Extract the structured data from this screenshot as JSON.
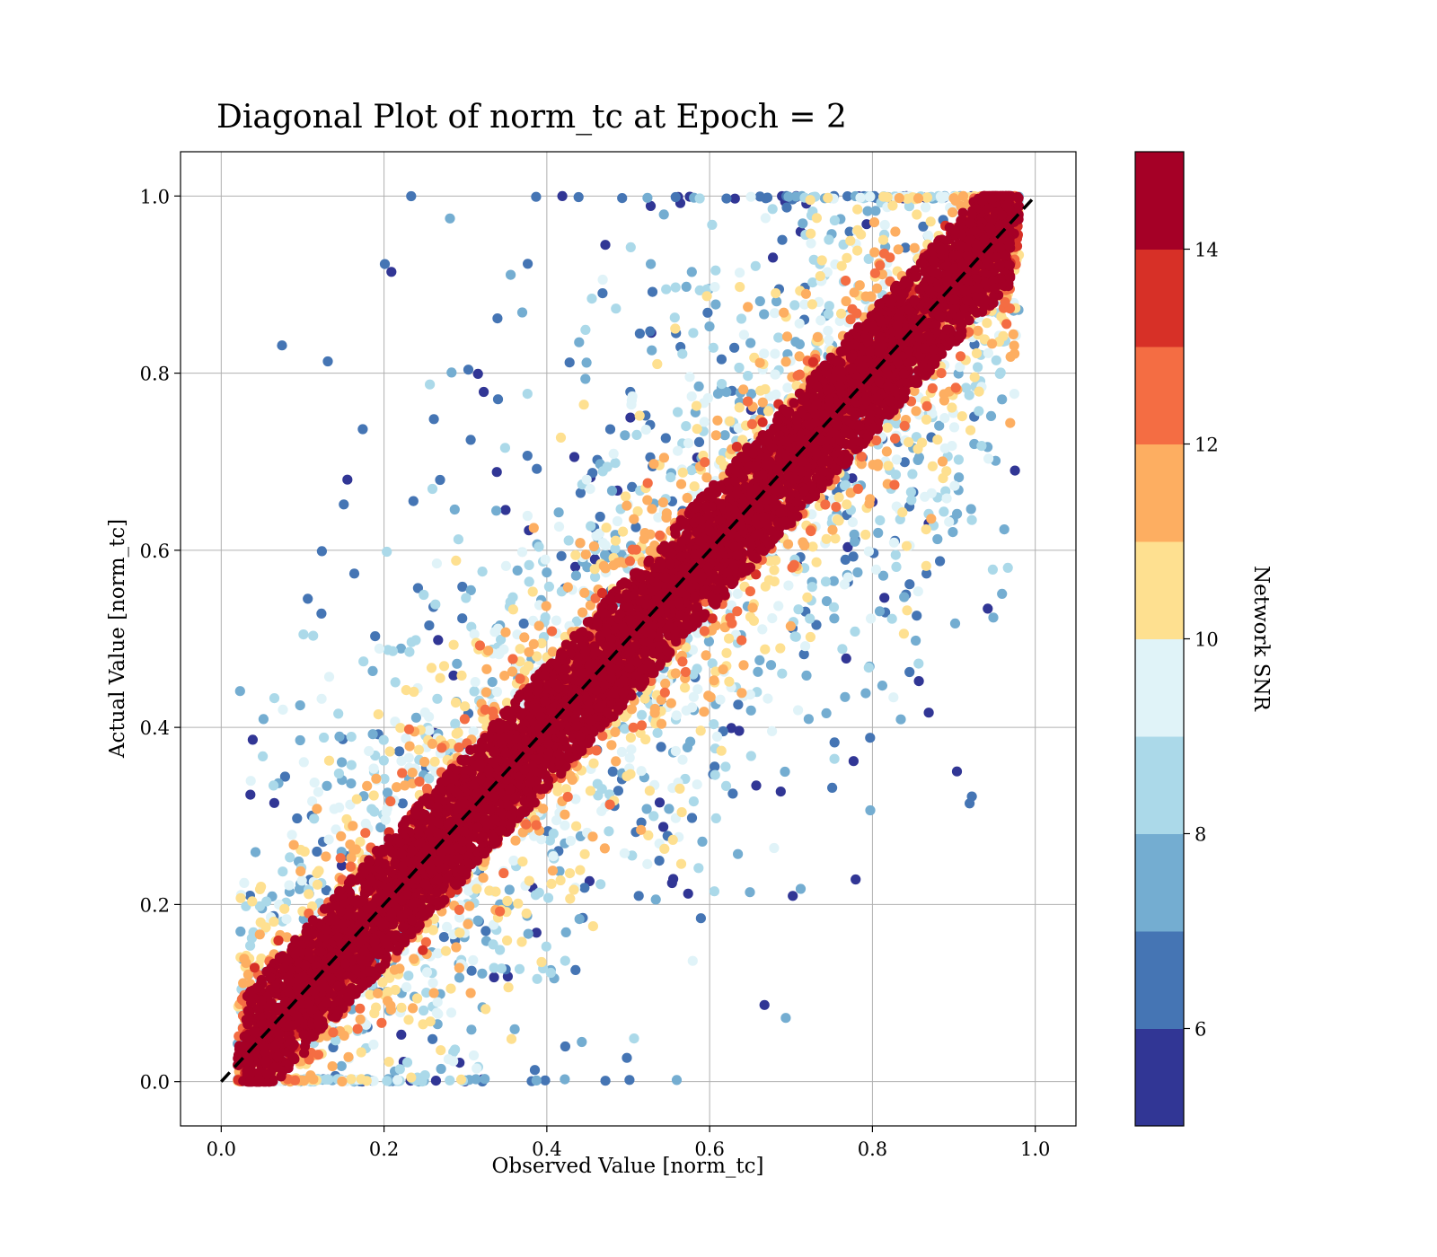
{
  "chart_data": {
    "type": "scatter",
    "title": "Diagonal Plot of norm_tc at Epoch = 2",
    "xlabel": "Observed Value [norm_tc]",
    "ylabel": "Actual Value [norm_tc]",
    "xlim": [
      -0.05,
      1.05
    ],
    "ylim": [
      -0.05,
      1.05
    ],
    "xticks": [
      0.0,
      0.2,
      0.4,
      0.6,
      0.8,
      1.0
    ],
    "yticks": [
      0.0,
      0.2,
      0.4,
      0.6,
      0.8,
      1.0
    ],
    "xtick_labels": [
      "0.0",
      "0.2",
      "0.4",
      "0.6",
      "0.8",
      "1.0"
    ],
    "ytick_labels": [
      "0.0",
      "0.2",
      "0.4",
      "0.6",
      "0.8",
      "1.0"
    ],
    "grid": true,
    "reference_line": {
      "style": "dashed",
      "color": "#000000",
      "from": [
        0.0,
        0.0
      ],
      "to": [
        1.0,
        1.0
      ]
    },
    "colorbar": {
      "label": "Network SNR",
      "range": [
        5,
        15
      ],
      "ticks": [
        6,
        8,
        10,
        12,
        14
      ],
      "tick_labels": [
        "6",
        "8",
        "10",
        "12",
        "14"
      ],
      "colors": [
        "#313695",
        "#4575b4",
        "#74add1",
        "#abd9e9",
        "#e0f3f8",
        "#fee090",
        "#fdae61",
        "#f46d43",
        "#d73027",
        "#a50026"
      ]
    },
    "series": [
      {
        "description_points": "dense scatter; high-SNR points (>=14) concentrate along y = x, lower-SNR points spread further from the diagonal",
        "band_core_halfwidth": 0.07,
        "x_range": [
          0.02,
          0.98
        ],
        "y_range": [
          0.0,
          1.0
        ]
      }
    ]
  }
}
